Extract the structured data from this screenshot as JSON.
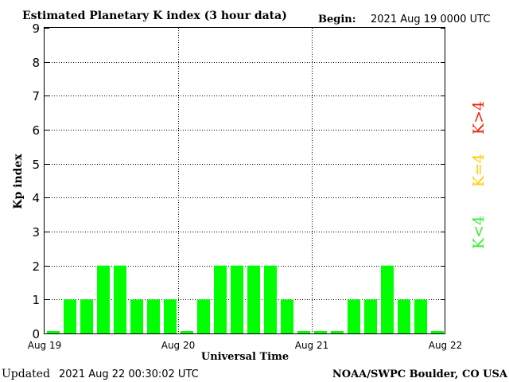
{
  "chart_data": {
    "type": "bar",
    "title": "Estimated Planetary K index (3 hour data)",
    "begin_label": "Begin:",
    "begin_value": "2021 Aug 19 0000 UTC",
    "xlabel": "Universal Time",
    "ylabel": "Kp index",
    "ylim": [
      0,
      9
    ],
    "yticks": [
      "0",
      "1",
      "2",
      "3",
      "4",
      "5",
      "6",
      "7",
      "8",
      "9"
    ],
    "xtick_labels": [
      "Aug 19",
      "Aug 20",
      "Aug 21",
      "Aug 22"
    ],
    "grid": true,
    "interval_hours": 3,
    "values": [
      0.05,
      1,
      1,
      2,
      2,
      1,
      1,
      1,
      0.05,
      1,
      2,
      2,
      2,
      2,
      1,
      0.05,
      0.05,
      0.05,
      1,
      1,
      2,
      1,
      1,
      0.05
    ],
    "bar_color": "#00ff00",
    "legend": [
      {
        "label": "K<4",
        "color": "#33ee33"
      },
      {
        "label": "K=4",
        "color": "#ffcc00"
      },
      {
        "label": "K>4",
        "color": "#ee2200"
      }
    ]
  },
  "footer": {
    "updated_label": "Updated",
    "updated_value": "2021 Aug 22 00:30:02 UTC",
    "source": "NOAA/SWPC Boulder, CO USA"
  }
}
